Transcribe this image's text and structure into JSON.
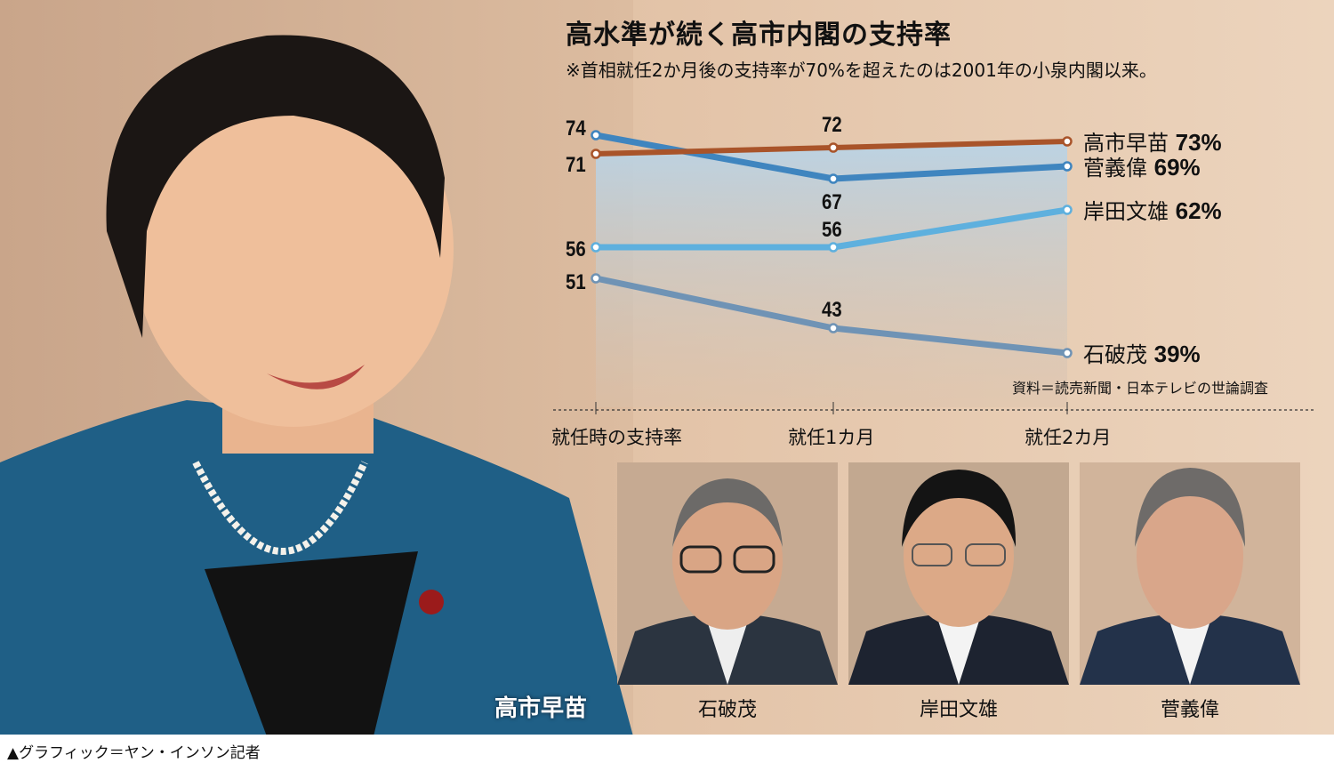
{
  "title": "高水準が続く高市内閣の支持率",
  "subtitle": "※首相就任2か月後の支持率が70%を超えたのは2001年の小泉内閣以来。",
  "source": "資料＝読売新聞・日本テレビの世論調査",
  "credit": "▲グラフィック＝ヤン・インソン記者",
  "photo_caption": "高市早苗",
  "portraits": [
    {
      "name": "石破茂"
    },
    {
      "name": "岸田文雄"
    },
    {
      "name": "菅義偉"
    }
  ],
  "chart_data": {
    "type": "line",
    "title": "高水準が続く高市内閣の支持率",
    "categories": [
      "就任時の支持率",
      "就任1カ月",
      "就任2カ月"
    ],
    "ylim": [
      35,
      76
    ],
    "grid": false,
    "series": [
      {
        "name": "高市早苗",
        "end_label": "73%",
        "values": [
          71,
          72,
          73
        ],
        "color": "#a9542a",
        "point_labels": [
          "71",
          "72",
          null
        ]
      },
      {
        "name": "菅義偉",
        "end_label": "69%",
        "values": [
          74,
          67,
          69
        ],
        "color": "#3f85bf",
        "point_labels": [
          "74",
          "67",
          null
        ]
      },
      {
        "name": "岸田文雄",
        "end_label": "62%",
        "values": [
          56,
          56,
          62
        ],
        "color": "#5eb0de",
        "point_labels": [
          "56",
          "56",
          null
        ]
      },
      {
        "name": "石破茂",
        "end_label": "39%",
        "values": [
          51,
          43,
          39
        ],
        "color": "#6f93b5",
        "point_labels": [
          "51",
          "43",
          null
        ]
      }
    ]
  }
}
